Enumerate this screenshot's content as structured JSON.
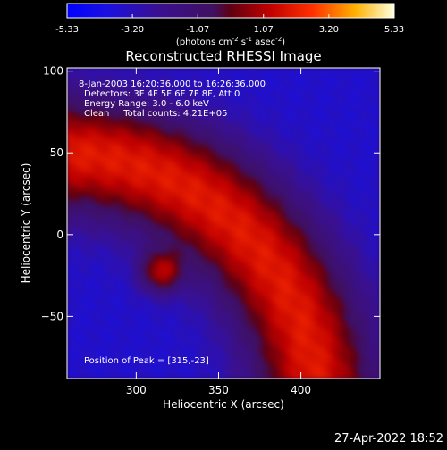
{
  "colorbar": {
    "ticks": [
      "-5.33",
      "-3.20",
      "-1.07",
      "1.07",
      "3.20",
      "5.33"
    ],
    "tick_values": [
      -5.33,
      -3.2,
      -1.07,
      1.07,
      3.2,
      5.33
    ],
    "units_main": "(photons cm",
    "units_sup1": "-2",
    "units_mid": " s",
    "units_sup2": "-1",
    "units_end": " asec",
    "units_sup3": "-2",
    "units_close": ")",
    "range": [
      -5.33,
      5.33
    ]
  },
  "chart_data": {
    "type": "heatmap",
    "title": "Reconstructed RHESSI Image",
    "xlabel": "Heliocentric X (arcsec)",
    "ylabel": "Heliocentric Y (arcsec)",
    "xlim": [
      258,
      448
    ],
    "ylim": [
      -88,
      102
    ],
    "x_ticks": [
      300,
      350,
      400
    ],
    "y_ticks": [
      100,
      50,
      0,
      -50
    ],
    "x_ticks_text": [
      "300",
      "350",
      "400"
    ],
    "y_ticks_text": [
      "100",
      "50",
      "0",
      "−50"
    ],
    "peak": [
      315,
      -23
    ],
    "background_level": -3.6,
    "limb_center": [
      250,
      -110
    ],
    "limb_radius": 160,
    "limb_width": 85,
    "arc_value": 2.0,
    "peak_value": 5.33,
    "annotations": [
      "8-Jan-2003 16:20:36.000 to 16:26:36.000",
      "Detectors: 3F 4F 5F 6F 7F 8F, Att 0",
      "Energy Range: 3.0 - 6.0 keV",
      "Clean     Total counts: 4.21E+05"
    ],
    "peak_label": "Position of Peak = [315,-23]"
  },
  "footer_timestamp": "27-Apr-2022 18:52"
}
